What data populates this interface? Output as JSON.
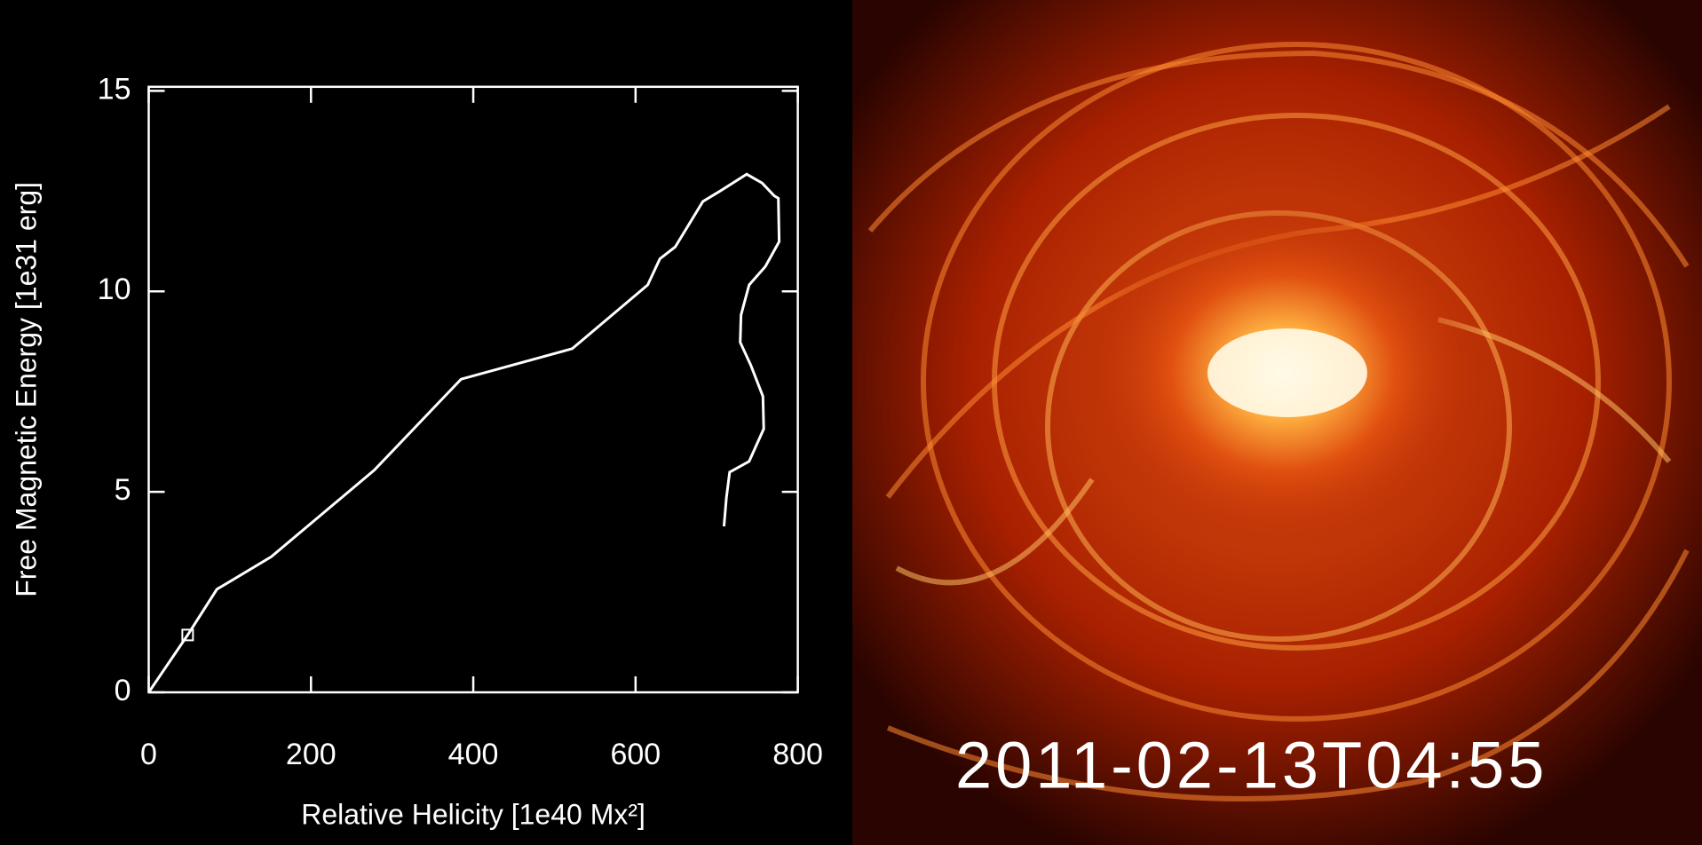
{
  "chart_data": {
    "type": "line",
    "xlabel": "Relative Helicity [1e40 Mx²]",
    "ylabel": "Free Magnetic Energy [1e31 erg]",
    "x": [
      0,
      48,
      84,
      151,
      278,
      385,
      522,
      615,
      630,
      649,
      683,
      705,
      737,
      756,
      771,
      776,
      777,
      760,
      740,
      730,
      729,
      742,
      757,
      758,
      740,
      716,
      712,
      709
    ],
    "series": [
      {
        "color": "#ffffff",
        "values": [
          0,
          1.43,
          2.57,
          3.38,
          5.54,
          7.81,
          8.57,
          10.16,
          10.81,
          11.11,
          12.24,
          12.51,
          12.92,
          12.7,
          12.38,
          12.32,
          11.24,
          10.62,
          10.16,
          9.41,
          8.73,
          8.16,
          7.38,
          6.57,
          5.76,
          5.49,
          4.86,
          4.14
        ]
      }
    ],
    "marker_index": 1,
    "xlim": [
      0,
      800
    ],
    "xticks": [
      0,
      200,
      400,
      600,
      800
    ],
    "ylim": [
      0,
      15.1
    ],
    "yticks": [
      0,
      5,
      10,
      15
    ]
  },
  "image": {
    "caption": "2011-02-13T04:55"
  }
}
